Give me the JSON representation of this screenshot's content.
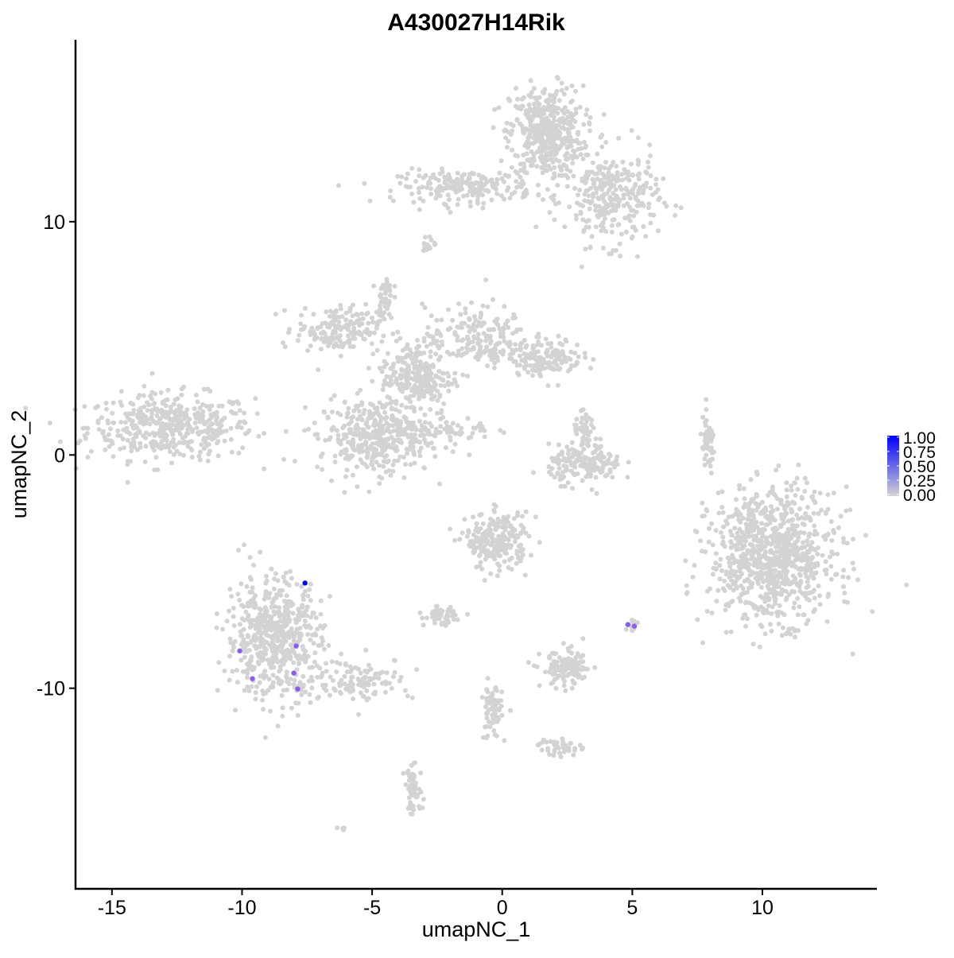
{
  "chart_data": {
    "type": "scatter",
    "title": "A430027H14Rik",
    "xlabel": "umapNC_1",
    "ylabel": "umapNC_2",
    "xlim": [
      -16.4,
      14.4
    ],
    "ylim": [
      -18.6,
      17.8
    ],
    "x_ticks": [
      -15,
      -10,
      -5,
      0,
      5,
      10
    ],
    "y_ticks": [
      -10,
      0,
      10
    ],
    "grid": false,
    "legend": {
      "placement": "right",
      "type": "colorbar",
      "ticks": [
        "0.00",
        "0.25",
        "0.50",
        "0.75",
        "1.00"
      ],
      "range": [
        0,
        1
      ],
      "low_color": "#d3d3d3",
      "high_color": "#0000ff"
    },
    "clusters_approx": [
      {
        "x": -12.75,
        "y": 1.2,
        "sx": 1.6,
        "sy": 0.7,
        "n": 450
      },
      {
        "x": 1.7,
        "y": 13.8,
        "sx": 0.7,
        "sy": 1.0,
        "n": 450
      },
      {
        "x": -1.4,
        "y": 11.5,
        "sx": 1.3,
        "sy": 0.35,
        "n": 200
      },
      {
        "x": 4.2,
        "y": 11.0,
        "sx": 0.9,
        "sy": 1.0,
        "n": 300
      },
      {
        "x": -6.3,
        "y": 5.4,
        "sx": 0.8,
        "sy": 0.5,
        "n": 180
      },
      {
        "x": -3.3,
        "y": 3.3,
        "sx": 0.7,
        "sy": 0.8,
        "n": 250
      },
      {
        "x": -4.9,
        "y": 0.8,
        "sx": 1.1,
        "sy": 0.8,
        "n": 380
      },
      {
        "x": -1.0,
        "y": 5.0,
        "sx": 1.0,
        "sy": 0.7,
        "n": 200
      },
      {
        "x": 1.7,
        "y": 4.2,
        "sx": 0.7,
        "sy": 0.4,
        "n": 150
      },
      {
        "x": -4.5,
        "y": 6.8,
        "sx": 0.15,
        "sy": 0.5,
        "n": 40
      },
      {
        "x": -2.0,
        "y": 1.1,
        "sx": 0.8,
        "sy": 0.25,
        "n": 50
      },
      {
        "x": 3.2,
        "y": -0.4,
        "sx": 0.7,
        "sy": 0.4,
        "n": 160
      },
      {
        "x": 3.2,
        "y": 0.9,
        "sx": 0.25,
        "sy": 0.4,
        "n": 50
      },
      {
        "x": 7.9,
        "y": 0.4,
        "sx": 0.15,
        "sy": 0.6,
        "n": 50
      },
      {
        "x": 10.4,
        "y": -4.3,
        "sx": 1.2,
        "sy": 1.4,
        "n": 900
      },
      {
        "x": -8.8,
        "y": -7.8,
        "sx": 0.9,
        "sy": 1.3,
        "n": 550
      },
      {
        "x": -5.6,
        "y": -9.6,
        "sx": 1.1,
        "sy": 0.45,
        "n": 120
      },
      {
        "x": -0.2,
        "y": -3.7,
        "sx": 0.6,
        "sy": 0.6,
        "n": 230
      },
      {
        "x": -2.4,
        "y": -6.9,
        "sx": 0.3,
        "sy": 0.2,
        "n": 50
      },
      {
        "x": 2.5,
        "y": -9.2,
        "sx": 0.5,
        "sy": 0.4,
        "n": 120
      },
      {
        "x": -0.4,
        "y": -11.0,
        "sx": 0.2,
        "sy": 0.6,
        "n": 70
      },
      {
        "x": -3.4,
        "y": -14.4,
        "sx": 0.18,
        "sy": 0.5,
        "n": 60
      },
      {
        "x": 2.2,
        "y": -12.5,
        "sx": 0.4,
        "sy": 0.2,
        "n": 40
      },
      {
        "x": 5.0,
        "y": -7.3,
        "sx": 0.12,
        "sy": 0.15,
        "n": 12
      },
      {
        "x": -6.1,
        "y": -16.0,
        "sx": 0.08,
        "sy": 0.06,
        "n": 4
      },
      {
        "x": -2.8,
        "y": 9.0,
        "sx": 0.15,
        "sy": 0.2,
        "n": 15
      }
    ],
    "expressing_points": [
      {
        "x": -7.58,
        "y": -5.49,
        "value": 1.0
      },
      {
        "x": -10.09,
        "y": -8.4,
        "value": 0.5
      },
      {
        "x": -7.92,
        "y": -8.19,
        "value": 0.5
      },
      {
        "x": -8.01,
        "y": -9.35,
        "value": 0.5
      },
      {
        "x": -9.6,
        "y": -9.59,
        "value": 0.5
      },
      {
        "x": -7.86,
        "y": -10.03,
        "value": 0.5
      },
      {
        "x": 4.83,
        "y": -7.27,
        "value": 0.5
      },
      {
        "x": 5.08,
        "y": -7.34,
        "value": 0.5
      }
    ]
  }
}
